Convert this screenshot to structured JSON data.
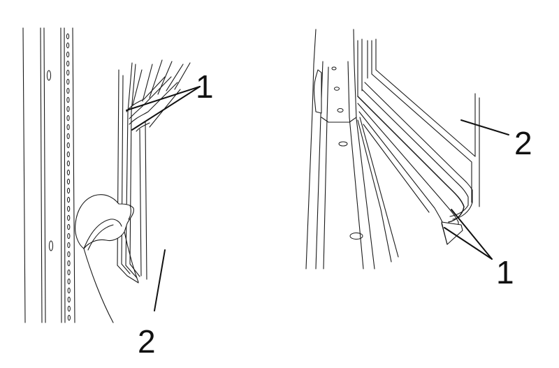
{
  "figures": [
    {
      "id": "left",
      "callouts": [
        {
          "label": "1"
        },
        {
          "label": "2"
        }
      ]
    },
    {
      "id": "right",
      "callouts": [
        {
          "label": "2"
        },
        {
          "label": "1"
        }
      ]
    }
  ],
  "colors": {
    "line": "#1a1a1a",
    "background": "#ffffff"
  }
}
